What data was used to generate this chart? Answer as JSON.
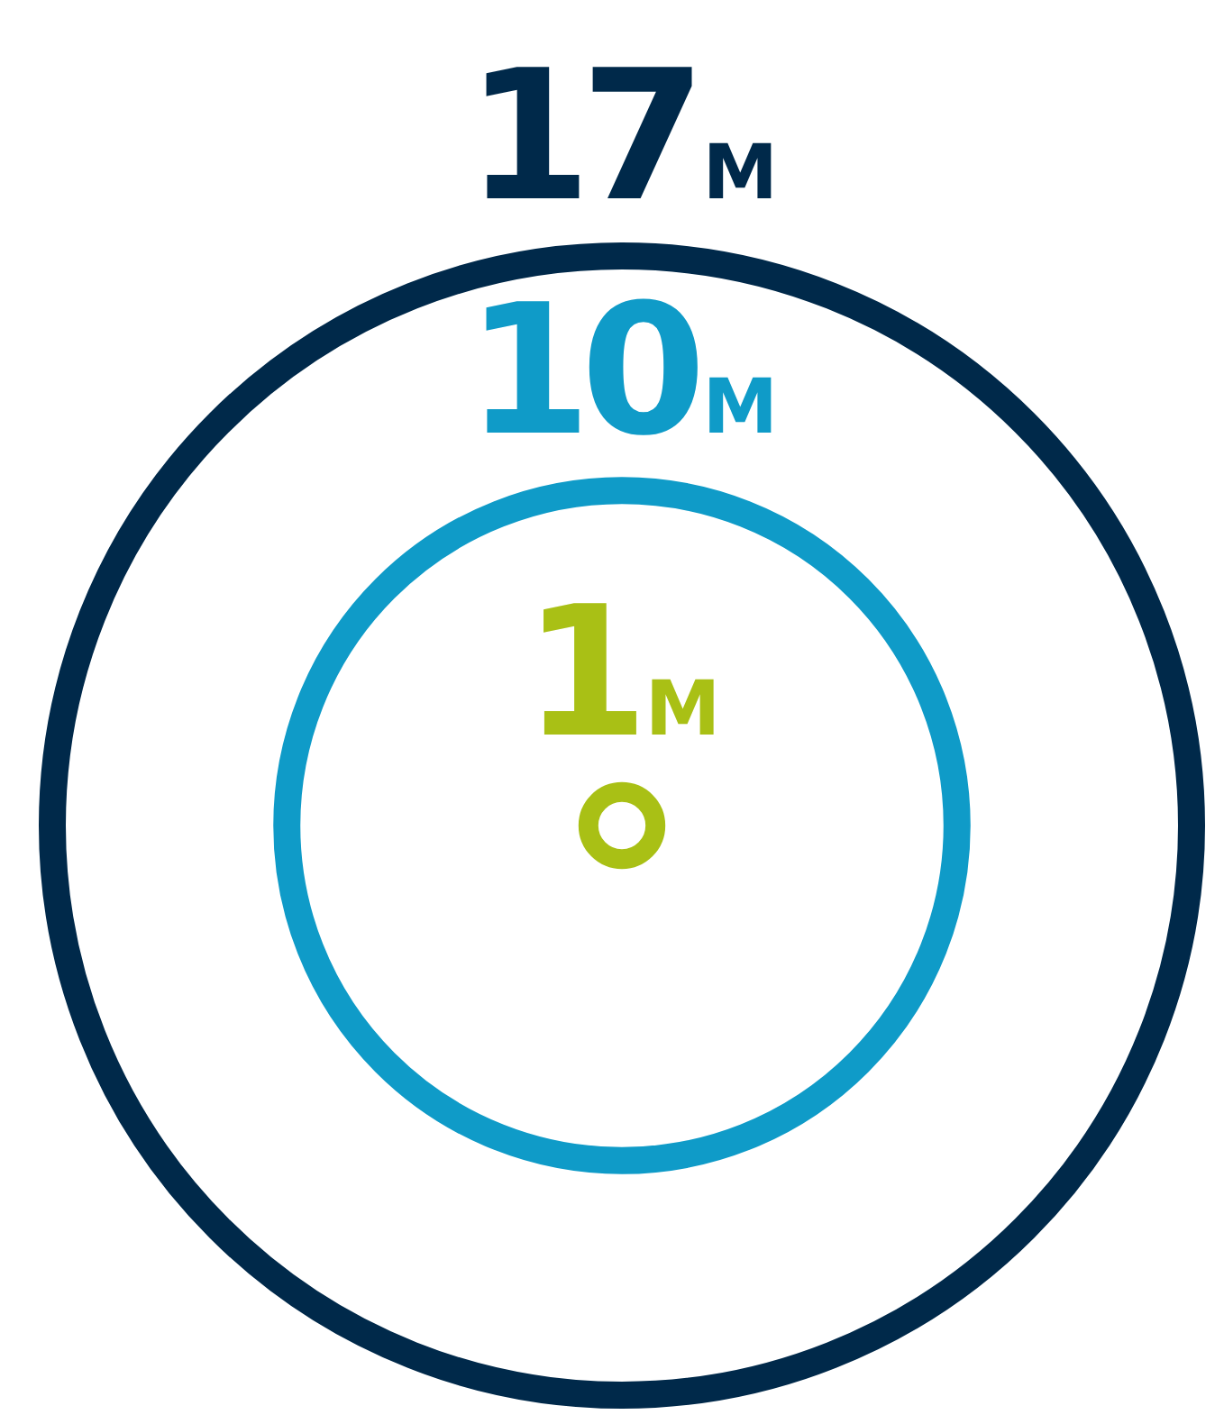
{
  "chart_data": {
    "type": "other",
    "categories": [
      null,
      null,
      null
    ],
    "values": [
      17,
      10,
      1
    ],
    "value_labels": [
      "17M",
      "10M",
      "1M"
    ],
    "colors": [
      "#00294a",
      "#0f9bc8",
      "#a9c015"
    ]
  }
}
